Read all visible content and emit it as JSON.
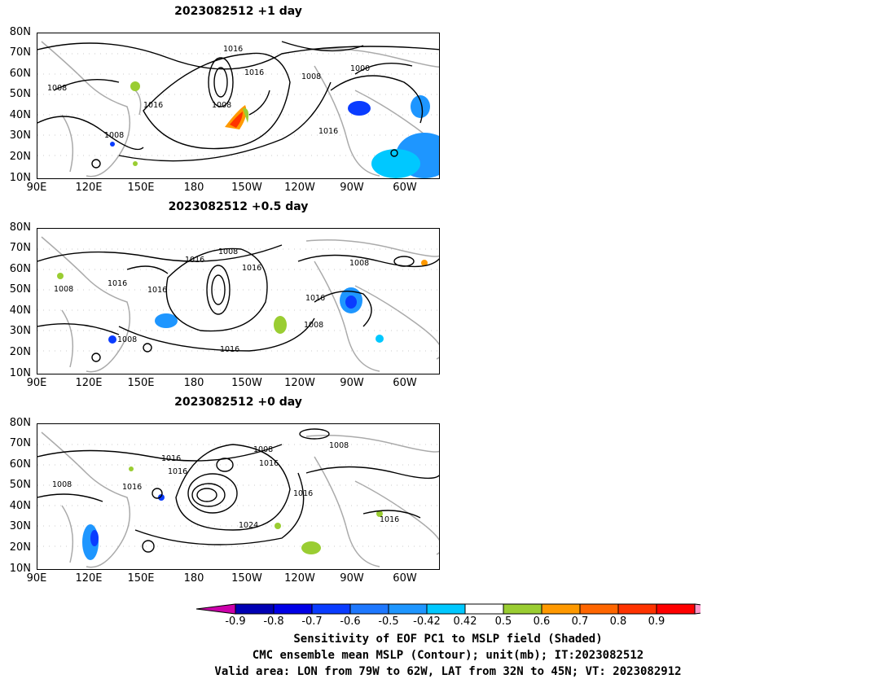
{
  "panels": [
    {
      "title": "2023082512  +1 day",
      "contour_labels": [
        "1016",
        "1016",
        "1000",
        "1008",
        "1008",
        "1008",
        "1016",
        "1008",
        "1016"
      ]
    },
    {
      "title": "2023082512  +0.5 day",
      "contour_labels": [
        "1008",
        "1016",
        "1016",
        "1008",
        "1008",
        "1016",
        "1016",
        "1016",
        "1008",
        "1008",
        "1016"
      ]
    },
    {
      "title": "2023082512  +0 day",
      "contour_labels": [
        "1008",
        "1016",
        "1008",
        "1016",
        "1016",
        "1008",
        "1016",
        "1016",
        "1024",
        "1016"
      ]
    }
  ],
  "axes": {
    "lat_labels": [
      "80N",
      "70N",
      "60N",
      "50N",
      "40N",
      "30N",
      "20N",
      "10N"
    ],
    "lon_labels": [
      "90E",
      "120E",
      "150E",
      "180",
      "150W",
      "120W",
      "90W",
      "60W"
    ]
  },
  "colorbar": {
    "ticks": [
      "-0.9",
      "-0.8",
      "-0.7",
      "-0.6",
      "-0.5",
      "-0.42",
      "0.42",
      "0.5",
      "0.6",
      "0.7",
      "0.8",
      "0.9"
    ],
    "colors": [
      "#cc00aa",
      "#0000b4",
      "#0000e6",
      "#0a3cff",
      "#1e78ff",
      "#1e96ff",
      "#00c8ff",
      "#ffffff",
      "#9acd32",
      "#ff9900",
      "#ff6600",
      "#ff3300",
      "#ff0000",
      "#ff99cc"
    ]
  },
  "captions": [
    "Sensitivity of EOF PC1 to MSLP field (Shaded)",
    "CMC ensemble mean MSLP (Contour); unit(mb); IT:2023082512",
    "Valid area: LON from 79W to 62W, LAT from 32N to 45N; VT: 2023082912"
  ]
}
